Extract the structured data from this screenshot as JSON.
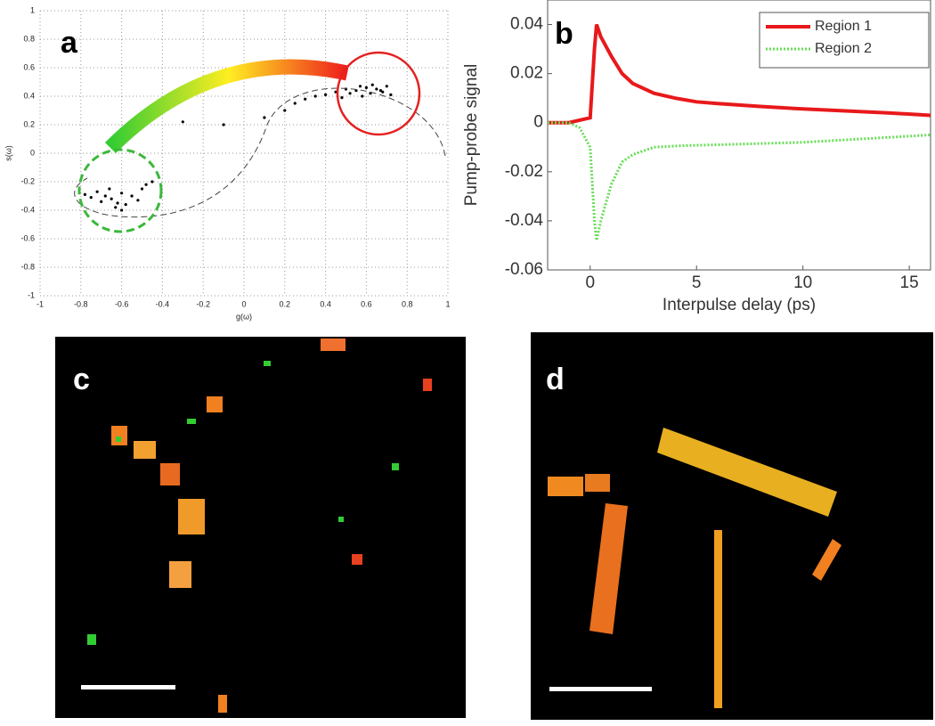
{
  "panel_labels": [
    "a",
    "b",
    "c",
    "d"
  ],
  "chart_data": [
    {
      "type": "scatter",
      "xlabel": "g(ω)",
      "ylabel": "s(ω)",
      "xlim": [
        -1,
        1
      ],
      "ylim": [
        -1,
        1
      ],
      "xticks": [
        -1,
        -0.8,
        -0.6,
        -0.4,
        -0.2,
        0,
        0.2,
        0.4,
        0.6,
        0.8,
        1
      ],
      "yticks": [
        -1,
        -0.8,
        -0.6,
        -0.4,
        -0.2,
        0,
        0.2,
        0.4,
        0.6,
        0.8,
        1
      ],
      "grid": true,
      "color": "#000000",
      "x": [
        0.5,
        0.55,
        0.6,
        0.62,
        0.65,
        0.68,
        0.7,
        0.72,
        0.58,
        0.52,
        0.45,
        0.4,
        0.35,
        0.3,
        0.25,
        0.2,
        0.63,
        0.57,
        0.67,
        0.48,
        0.1,
        -0.1,
        -0.3,
        -0.45,
        -0.5,
        -0.55,
        -0.6,
        -0.62,
        -0.65,
        -0.68,
        -0.7,
        -0.72,
        -0.75,
        -0.58,
        -0.63,
        -0.66,
        -0.52,
        -0.48,
        -0.78,
        -0.6
      ],
      "y": [
        0.45,
        0.44,
        0.46,
        0.42,
        0.45,
        0.43,
        0.47,
        0.41,
        0.4,
        0.42,
        0.43,
        0.41,
        0.4,
        0.38,
        0.35,
        0.3,
        0.48,
        0.47,
        0.44,
        0.39,
        0.25,
        0.2,
        0.22,
        -0.2,
        -0.25,
        -0.3,
        -0.28,
        -0.35,
        -0.32,
        -0.3,
        -0.34,
        -0.27,
        -0.31,
        -0.36,
        -0.38,
        -0.25,
        -0.33,
        -0.22,
        -0.29,
        -0.4
      ]
    },
    {
      "type": "line",
      "xlabel": "Interpulse delay (ps)",
      "ylabel": "Pump-probe signal",
      "xlim": [
        -2,
        16
      ],
      "ylim": [
        -0.06,
        0.05
      ],
      "xticks": [
        0,
        5,
        10,
        15
      ],
      "yticks": [
        -0.06,
        -0.04,
        -0.02,
        0,
        0.02,
        0.04
      ],
      "legend": "upper right",
      "x": [
        -2,
        -1,
        -0.5,
        0,
        0.2,
        0.3,
        0.5,
        1,
        1.5,
        2,
        3,
        4,
        5,
        6,
        8,
        10,
        12,
        14,
        16
      ],
      "series": [
        {
          "name": "Region 1",
          "color": "#e8191b",
          "style": "solid",
          "values": [
            0,
            0,
            0.001,
            0.002,
            0.03,
            0.04,
            0.035,
            0.027,
            0.02,
            0.016,
            0.012,
            0.01,
            0.0085,
            0.0078,
            0.0066,
            0.0056,
            0.0048,
            0.004,
            0.003
          ]
        },
        {
          "name": "Region 2",
          "color": "#66dd55",
          "style": "dotted",
          "values": [
            0,
            0,
            -0.002,
            -0.01,
            -0.04,
            -0.048,
            -0.04,
            -0.025,
            -0.016,
            -0.013,
            -0.01,
            -0.0095,
            -0.0092,
            -0.009,
            -0.0085,
            -0.008,
            -0.007,
            -0.006,
            -0.005
          ]
        }
      ]
    }
  ]
}
